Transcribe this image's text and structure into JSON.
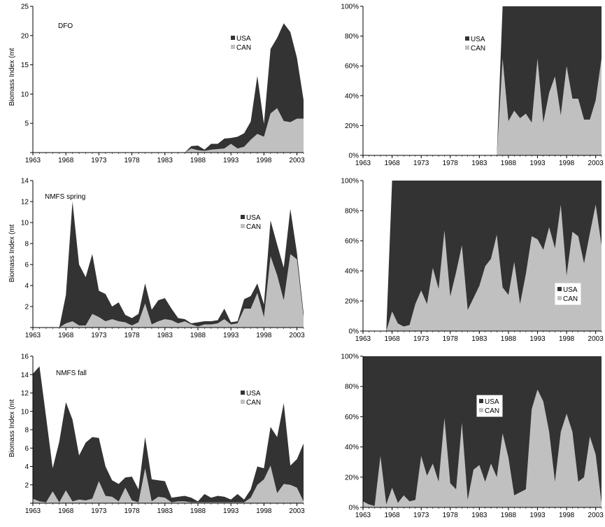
{
  "colors": {
    "usa": "#333333",
    "can": "#c0c0c0",
    "axis": "#000000",
    "bg": "#ffffff"
  },
  "chart_data": [
    {
      "id": "dfo-abs",
      "type": "area",
      "stacked": true,
      "title": "DFO",
      "ylabel": "Biomass Index (mt",
      "xlim": [
        1963,
        2004
      ],
      "ylim": [
        0,
        25
      ],
      "yticks": [
        "",
        "5",
        "10",
        "15",
        "20",
        "25"
      ],
      "ytick_values": [
        0,
        5,
        10,
        15,
        20,
        25
      ],
      "xticks": [
        "1963",
        "1968",
        "1973",
        "1978",
        "1983",
        "1988",
        "1993",
        "1998",
        "2003"
      ],
      "legend": [
        "USA",
        "CAN"
      ],
      "x": [
        1986,
        1987,
        1988,
        1989,
        1990,
        1991,
        1992,
        1993,
        1994,
        1995,
        1996,
        1997,
        1998,
        1999,
        2000,
        2001,
        2002,
        2003,
        2004
      ],
      "series": [
        {
          "name": "CAN",
          "values": [
            0,
            0.7,
            0.4,
            0.3,
            0.5,
            0.6,
            0.7,
            1.5,
            0.7,
            1.0,
            2.2,
            3.2,
            2.7,
            6.7,
            7.6,
            5.4,
            5.2,
            5.8,
            5.8
          ]
        },
        {
          "name": "USA",
          "values": [
            0,
            0.4,
            0.8,
            0.2,
            1.0,
            0.9,
            1.7,
            1.0,
            2.0,
            2.3,
            3.1,
            9.9,
            2.2,
            11.0,
            12.0,
            16.7,
            15.4,
            10.4,
            3.2
          ]
        }
      ]
    },
    {
      "id": "dfo-pct",
      "type": "area",
      "stacked": true,
      "percent": true,
      "xlim": [
        1963,
        2004
      ],
      "ylim": [
        0,
        100
      ],
      "yticks": [
        "0%",
        "20%",
        "40%",
        "60%",
        "80%",
        "100%"
      ],
      "ytick_values": [
        0,
        20,
        40,
        60,
        80,
        100
      ],
      "xticks": [
        "1963",
        "1968",
        "1973",
        "1978",
        "1983",
        "1988",
        "1993",
        "1998",
        "2003"
      ],
      "legend": [
        "USA",
        "CAN"
      ],
      "x": [
        1986,
        1987,
        1988,
        1989,
        1990,
        1991,
        1992,
        1993,
        1994,
        1995,
        1996,
        1997,
        1998,
        1999,
        2000,
        2001,
        2002,
        2003,
        2004
      ],
      "series": [
        {
          "name": "CAN",
          "values": [
            0,
            65,
            23,
            30,
            25,
            28,
            22,
            65,
            22,
            42,
            53,
            27,
            60,
            38,
            38,
            24,
            24,
            37,
            65
          ]
        },
        {
          "name": "USA",
          "values": [
            0,
            35,
            77,
            70,
            75,
            72,
            78,
            35,
            78,
            58,
            47,
            73,
            40,
            62,
            62,
            76,
            76,
            63,
            35
          ]
        }
      ]
    },
    {
      "id": "spring-abs",
      "type": "area",
      "stacked": true,
      "title": "NMFS spring",
      "ylabel": "Biomass Index (mt",
      "xlim": [
        1963,
        2004
      ],
      "ylim": [
        0,
        14
      ],
      "yticks": [
        "",
        "2",
        "4",
        "6",
        "8",
        "10",
        "12",
        "14"
      ],
      "ytick_values": [
        0,
        2,
        4,
        6,
        8,
        10,
        12,
        14
      ],
      "xticks": [
        "1963",
        "1968",
        "1973",
        "1978",
        "1983",
        "1988",
        "1993",
        "1998",
        "2003"
      ],
      "legend": [
        "USA",
        "CAN"
      ],
      "x": [
        1967,
        1968,
        1969,
        1970,
        1971,
        1972,
        1973,
        1974,
        1975,
        1976,
        1977,
        1978,
        1979,
        1980,
        1981,
        1982,
        1983,
        1984,
        1985,
        1986,
        1987,
        1988,
        1989,
        1990,
        1991,
        1992,
        1993,
        1994,
        1995,
        1996,
        1997,
        1998,
        1999,
        2000,
        2001,
        2002,
        2003,
        2004
      ],
      "series": [
        {
          "name": "CAN",
          "values": [
            0,
            0.4,
            0.6,
            0.2,
            0.2,
            1.3,
            1.0,
            0.6,
            0.8,
            0.6,
            0.5,
            0.2,
            0.5,
            2.3,
            0.3,
            0.6,
            0.8,
            0.7,
            0.4,
            0.6,
            0.3,
            0.1,
            0.3,
            0.3,
            0.4,
            0.8,
            0.3,
            0.4,
            1.8,
            1.8,
            3.3,
            1.0,
            6.8,
            5.0,
            2.6,
            7.0,
            6.5,
            1.0
          ]
        },
        {
          "name": "USA",
          "values": [
            0,
            2.7,
            11.4,
            5.8,
            4.6,
            5.7,
            2.5,
            2.6,
            1.2,
            1.8,
            0.7,
            0.7,
            0.8,
            1.9,
            1.4,
            2.0,
            2.0,
            1.1,
            0.5,
            0.2,
            0.1,
            0.4,
            0.3,
            0.3,
            0.3,
            1.0,
            0.2,
            0.2,
            0.9,
            1.2,
            0.9,
            1.2,
            3.4,
            2.9,
            3.1,
            4.3,
            0.6,
            0.4
          ]
        }
      ]
    },
    {
      "id": "spring-pct",
      "type": "area",
      "stacked": true,
      "percent": true,
      "xlim": [
        1963,
        2004
      ],
      "ylim": [
        0,
        100
      ],
      "yticks": [
        "0%",
        "20%",
        "40%",
        "60%",
        "80%",
        "100%"
      ],
      "ytick_values": [
        0,
        20,
        40,
        60,
        80,
        100
      ],
      "xticks": [
        "1963",
        "1968",
        "1973",
        "1978",
        "1983",
        "1988",
        "1993",
        "1998",
        "2003"
      ],
      "legend": [
        "USA",
        "CAN"
      ],
      "x": [
        1967,
        1968,
        1969,
        1970,
        1971,
        1972,
        1973,
        1974,
        1975,
        1976,
        1977,
        1978,
        1979,
        1980,
        1981,
        1982,
        1983,
        1984,
        1985,
        1986,
        1987,
        1988,
        1989,
        1990,
        1991,
        1992,
        1993,
        1994,
        1995,
        1996,
        1997,
        1998,
        1999,
        2000,
        2001,
        2002,
        2003,
        2004
      ],
      "series": [
        {
          "name": "CAN",
          "values": [
            0,
            13,
            5,
            3,
            4,
            18,
            27,
            18,
            42,
            28,
            67,
            23,
            39,
            57,
            14,
            22,
            30,
            43,
            48,
            64,
            29,
            24,
            46,
            18,
            38,
            63,
            61,
            54,
            69,
            55,
            84,
            37,
            66,
            63,
            45,
            65,
            84,
            57
          ]
        },
        {
          "name": "USA",
          "values": [
            0,
            87,
            95,
            97,
            96,
            82,
            73,
            82,
            58,
            72,
            33,
            77,
            61,
            43,
            86,
            78,
            70,
            57,
            52,
            36,
            71,
            76,
            54,
            82,
            62,
            37,
            39,
            46,
            31,
            45,
            16,
            63,
            34,
            37,
            55,
            35,
            16,
            43
          ]
        }
      ]
    },
    {
      "id": "fall-abs",
      "type": "area",
      "stacked": true,
      "title": "NMFS fall",
      "ylabel": "Biomass Index (mt",
      "xlim": [
        1963,
        2004
      ],
      "ylim": [
        0,
        16
      ],
      "yticks": [
        "",
        "2",
        "4",
        "6",
        "8",
        "10",
        "12",
        "14",
        "16"
      ],
      "ytick_values": [
        0,
        2,
        4,
        6,
        8,
        10,
        12,
        14,
        16
      ],
      "xticks": [
        "1963",
        "1968",
        "1973",
        "1978",
        "1983",
        "1988",
        "1993",
        "1998",
        "2003"
      ],
      "legend": [
        "USA",
        "CAN"
      ],
      "x": [
        1963,
        1964,
        1965,
        1966,
        1967,
        1968,
        1969,
        1970,
        1971,
        1972,
        1973,
        1974,
        1975,
        1976,
        1977,
        1978,
        1979,
        1980,
        1981,
        1982,
        1983,
        1984,
        1985,
        1986,
        1987,
        1988,
        1989,
        1990,
        1991,
        1992,
        1993,
        1994,
        1995,
        1996,
        1997,
        1998,
        1999,
        2000,
        2001,
        2002,
        2003,
        2004
      ],
      "series": [
        {
          "name": "CAN",
          "values": [
            0.5,
            0.2,
            0.1,
            1.3,
            0.1,
            1.4,
            0.2,
            0.4,
            0.3,
            0.5,
            2.4,
            0.8,
            0.7,
            0.2,
            1.7,
            0.3,
            0.1,
            3.8,
            0.2,
            0.7,
            0.6,
            0.1,
            0.2,
            0.2,
            0.1,
            0.1,
            0.1,
            0.1,
            0.1,
            0.1,
            0.1,
            0.1,
            0.1,
            0.6,
            2.0,
            2.6,
            4.1,
            1.1,
            2.1,
            2.0,
            1.7,
            0.2
          ]
        },
        {
          "name": "USA",
          "values": [
            13.6,
            14.7,
            9.3,
            2.5,
            6.6,
            9.6,
            8.9,
            4.8,
            6.3,
            6.7,
            4.7,
            3.2,
            1.8,
            1.9,
            1.1,
            2.6,
            1.4,
            3.4,
            2.4,
            1.8,
            1.8,
            0.5,
            0.5,
            0.6,
            0.5,
            0.1,
            0.9,
            0.5,
            0.7,
            0.6,
            0.3,
            0.9,
            0.3,
            0.9,
            2.0,
            1.2,
            4.2,
            6.1,
            8.8,
            2.1,
            3.1,
            6.3
          ]
        }
      ]
    },
    {
      "id": "fall-pct",
      "type": "area",
      "stacked": true,
      "percent": true,
      "xlim": [
        1963,
        2004
      ],
      "ylim": [
        0,
        100
      ],
      "yticks": [
        "0%",
        "20%",
        "40%",
        "60%",
        "80%",
        "100%"
      ],
      "ytick_values": [
        0,
        20,
        40,
        60,
        80,
        100
      ],
      "xticks": [
        "1963",
        "1968",
        "1973",
        "1978",
        "1983",
        "1988",
        "1993",
        "1998",
        "2003"
      ],
      "legend": [
        "USA",
        "CAN"
      ],
      "x": [
        1963,
        1964,
        1965,
        1966,
        1967,
        1968,
        1969,
        1970,
        1971,
        1972,
        1973,
        1974,
        1975,
        1976,
        1977,
        1978,
        1979,
        1980,
        1981,
        1982,
        1983,
        1984,
        1985,
        1986,
        1987,
        1988,
        1989,
        1990,
        1991,
        1992,
        1993,
        1994,
        1995,
        1996,
        1997,
        1998,
        1999,
        2000,
        2001,
        2002,
        2003,
        2004
      ],
      "series": [
        {
          "name": "CAN",
          "values": [
            4,
            2,
            1,
            34,
            2,
            13,
            3,
            8,
            4,
            5,
            34,
            21,
            29,
            17,
            59,
            16,
            12,
            56,
            5,
            25,
            28,
            17,
            29,
            20,
            49,
            33,
            8,
            10,
            12,
            65,
            78,
            70,
            50,
            17,
            50,
            62,
            50,
            17,
            20,
            47,
            35,
            3
          ]
        },
        {
          "name": "USA",
          "values": [
            96,
            98,
            99,
            66,
            98,
            87,
            97,
            92,
            96,
            95,
            66,
            79,
            71,
            83,
            41,
            84,
            88,
            44,
            95,
            75,
            72,
            83,
            71,
            80,
            51,
            67,
            92,
            90,
            88,
            35,
            22,
            30,
            50,
            83,
            50,
            38,
            50,
            83,
            80,
            53,
            65,
            97
          ]
        }
      ]
    }
  ]
}
